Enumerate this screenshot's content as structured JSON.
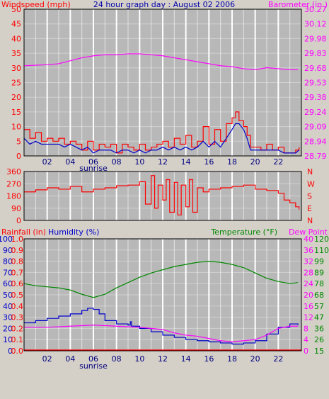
{
  "colors": {
    "background": "#d4d0c8",
    "plot": "#b8b8b8",
    "grid": "#ffffff",
    "red": "#ff0000",
    "blue": "#0000cc",
    "magenta": "#ff00ff",
    "green": "#008800"
  },
  "chart_data": [
    {
      "type": "line",
      "title": "24 hour graph day : August 02 2006",
      "left_axis_label": "Windspeed (mph)",
      "right_axis_label": "Barometer (in.)",
      "x_ticks": [
        "02",
        "04",
        "06",
        "08",
        "10",
        "12",
        "14",
        "16",
        "18",
        "20",
        "22"
      ],
      "x_range": [
        0,
        24
      ],
      "sunrise_label": "sunrise",
      "sunrise_hour": 6,
      "y_left_ticks": [
        "50",
        "45",
        "40",
        "35",
        "30",
        "25",
        "20",
        "15",
        "10",
        "5",
        "0"
      ],
      "y_right_ticks": [
        "30.27",
        "30.12",
        "29.98",
        "29.83",
        "29.68",
        "29.53",
        "29.38",
        "29.24",
        "29.09",
        "28.94",
        "28.79"
      ],
      "y_left_range": [
        0,
        50
      ],
      "y_right_range": [
        28.79,
        30.27
      ],
      "series": [
        {
          "axis": "right",
          "color": "magenta",
          "x": [
            0,
            2,
            3,
            4,
            5,
            6,
            7,
            8,
            9,
            10,
            11,
            12,
            13,
            14,
            15,
            16,
            17,
            18,
            19,
            20,
            21,
            22,
            23,
            23.7
          ],
          "values": [
            29.7,
            29.71,
            29.72,
            29.75,
            29.78,
            29.8,
            29.81,
            29.81,
            29.82,
            29.82,
            29.81,
            29.8,
            29.78,
            29.76,
            29.74,
            29.72,
            29.7,
            29.69,
            29.67,
            29.66,
            29.68,
            29.67,
            29.66,
            29.66
          ]
        },
        {
          "axis": "left",
          "color": "red",
          "x": [
            0,
            0.5,
            1,
            1.5,
            2,
            2.5,
            3,
            3.5,
            4,
            4.5,
            5,
            5.5,
            6,
            6.5,
            7,
            7.5,
            8,
            8.5,
            9,
            9.5,
            10,
            10.5,
            11,
            11.5,
            12,
            12.5,
            13,
            13.5,
            14,
            14.5,
            15,
            15.5,
            16,
            16.5,
            17,
            17.5,
            18,
            18.3,
            18.6,
            19,
            19.3,
            19.6,
            20,
            20.5,
            21,
            21.5,
            22,
            22.5,
            23,
            23.5,
            23.8
          ],
          "values": [
            9,
            6,
            8,
            5,
            6,
            5,
            6,
            4,
            5,
            4,
            2,
            5,
            2,
            4,
            3,
            4,
            1,
            4,
            3,
            2,
            4,
            2,
            3,
            4,
            5,
            3,
            6,
            4,
            7,
            3,
            5,
            10,
            4,
            9,
            5,
            11,
            13,
            15,
            12,
            10,
            7,
            3,
            3,
            2,
            4,
            2,
            3,
            1,
            1,
            2,
            3
          ]
        },
        {
          "axis": "left",
          "color": "blue",
          "x": [
            0,
            0.5,
            1,
            1.5,
            2,
            2.5,
            3,
            3.5,
            4,
            4.5,
            5,
            5.5,
            6,
            6.5,
            7,
            7.5,
            8,
            8.5,
            9,
            9.5,
            10,
            10.5,
            11,
            11.5,
            12,
            12.5,
            13,
            13.5,
            14,
            14.5,
            15,
            15.5,
            16,
            16.5,
            17,
            17.5,
            18,
            18.3,
            18.6,
            19,
            19.3,
            19.6,
            20,
            20.5,
            21,
            21.5,
            22,
            22.5,
            23,
            23.5,
            23.8
          ],
          "values": [
            6,
            4,
            5,
            4,
            4,
            4,
            4,
            3,
            4,
            3,
            2,
            3,
            1,
            2,
            2,
            2,
            1,
            2,
            2,
            1,
            2,
            1,
            2,
            2,
            3,
            2,
            3,
            2,
            3,
            2,
            3,
            5,
            3,
            5,
            3,
            6,
            9,
            11,
            11,
            9,
            6,
            2,
            2,
            2,
            2,
            2,
            2,
            1,
            1,
            1,
            2
          ]
        }
      ]
    },
    {
      "type": "line",
      "title": "",
      "y_left_ticks": [
        "360",
        "270",
        "180",
        "90",
        "0"
      ],
      "y_right_ticks": [
        "N",
        "W",
        "S",
        "E",
        "N"
      ],
      "y_left_range": [
        0,
        360
      ],
      "x_range": [
        0,
        24
      ],
      "series": [
        {
          "axis": "left",
          "color": "red",
          "x": [
            0,
            1,
            2,
            3,
            4,
            5,
            6,
            7,
            8,
            9,
            10,
            10.5,
            11,
            11.3,
            11.6,
            12,
            12.3,
            12.6,
            13,
            13.3,
            13.6,
            14,
            14.3,
            14.6,
            15,
            15.5,
            16,
            17,
            18,
            19,
            20,
            21,
            22,
            22.5,
            23,
            23.5,
            23.8
          ],
          "values": [
            210,
            225,
            240,
            230,
            250,
            210,
            230,
            240,
            255,
            260,
            285,
            120,
            330,
            90,
            260,
            150,
            300,
            60,
            280,
            40,
            260,
            100,
            300,
            60,
            240,
            210,
            230,
            240,
            250,
            260,
            230,
            220,
            200,
            150,
            130,
            100,
            80
          ]
        }
      ]
    },
    {
      "type": "line",
      "title": "",
      "left_axis_labels": [
        "Rainfall (in)",
        "Humidity (%)"
      ],
      "right_axis_labels": [
        "Temperature (°F)",
        "Dew Point"
      ],
      "x_ticks": [
        "02",
        "04",
        "06",
        "08",
        "10",
        "12",
        "14",
        "16",
        "18",
        "20",
        "22"
      ],
      "x_range": [
        0,
        24
      ],
      "sunrise_label": "sunrise",
      "sunrise_hour": 6,
      "y_humidity_ticks": [
        "100",
        "90",
        "80",
        "70",
        "60",
        "50",
        "40",
        "30",
        "20",
        "10",
        "0"
      ],
      "y_rainfall_ticks": [
        "1.0",
        "0.9",
        "0.8",
        "0.7",
        "0.6",
        "0.5",
        "0.4",
        "0.3",
        "0.2",
        "0.1",
        "0.0"
      ],
      "y_dewpoint_ticks": [
        "40",
        "36",
        "32",
        "28",
        "24",
        "20",
        "16",
        "12",
        "8",
        "4",
        "0"
      ],
      "y_temperature_ticks": [
        "120",
        "110",
        "99",
        "89",
        "78",
        "68",
        "57",
        "47",
        "36",
        "26",
        "15"
      ],
      "y_temperature_range": [
        15,
        120
      ],
      "y_humidity_range": [
        0,
        100
      ],
      "series": [
        {
          "axis": "temperature",
          "color": "green",
          "x": [
            0,
            1,
            2,
            3,
            4,
            5,
            6,
            7,
            8,
            9,
            10,
            11,
            12,
            13,
            14,
            15,
            16,
            17,
            18,
            19,
            20,
            21,
            22,
            23,
            23.7
          ],
          "values": [
            78,
            76,
            75,
            74,
            72,
            68,
            65,
            68,
            74,
            79,
            84,
            88,
            91,
            94,
            96,
            98,
            99,
            98,
            96,
            93,
            88,
            83,
            80,
            78,
            79
          ]
        },
        {
          "axis": "humidity",
          "color": "blue",
          "x": [
            0,
            1,
            2,
            3,
            4,
            5,
            5.5,
            6,
            6.5,
            7,
            8,
            9,
            9.2,
            9.3,
            10,
            11,
            12,
            13,
            14,
            15,
            16,
            17,
            18,
            19,
            20,
            21,
            22,
            23,
            23.7
          ],
          "values": [
            25,
            27,
            29,
            31,
            33,
            36,
            38,
            37,
            33,
            27,
            24,
            23,
            26,
            22,
            20,
            17,
            14,
            12,
            10,
            9,
            8,
            7,
            6,
            7,
            9,
            15,
            21,
            24,
            23
          ]
        },
        {
          "axis": "humidity",
          "color": "magenta",
          "x": [
            0,
            2,
            4,
            6,
            8,
            10,
            11,
            12,
            13,
            14,
            15,
            16,
            17,
            18,
            19,
            20,
            21,
            22,
            23,
            23.7
          ],
          "values": [
            21,
            21,
            22,
            23,
            22,
            21,
            20,
            19,
            16,
            14,
            13,
            11,
            9,
            8,
            9,
            10,
            14,
            20,
            22,
            22
          ]
        }
      ]
    }
  ]
}
